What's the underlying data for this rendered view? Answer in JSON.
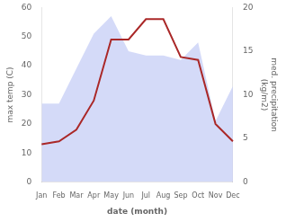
{
  "chart_data": {
    "type": "line",
    "categories": [
      "Jan",
      "Feb",
      "Mar",
      "Apr",
      "May",
      "Jun",
      "Jul",
      "Aug",
      "Sep",
      "Oct",
      "Nov",
      "Dec"
    ],
    "series": [
      {
        "type": "area",
        "color": "#c5cdf5",
        "axis": "y2",
        "values": [
          9,
          9,
          13,
          17,
          19,
          15,
          14.5,
          14.5,
          14,
          16,
          7,
          11
        ]
      },
      {
        "type": "line",
        "color": "#aa2828",
        "values": [
          13,
          14,
          18,
          28,
          49,
          49,
          56,
          56,
          43,
          42,
          20,
          14
        ]
      }
    ],
    "xlabel": "date (month)",
    "ylabel": "max temp (C)",
    "y2label": "med. precipitation\n(kg/m2)",
    "ylim": [
      0,
      60
    ],
    "yticks": [
      0,
      10,
      20,
      30,
      40,
      50,
      60
    ],
    "y2lim": [
      0,
      20
    ],
    "y2ticks": [
      0,
      5,
      10,
      15,
      20
    ],
    "grid": false
  }
}
